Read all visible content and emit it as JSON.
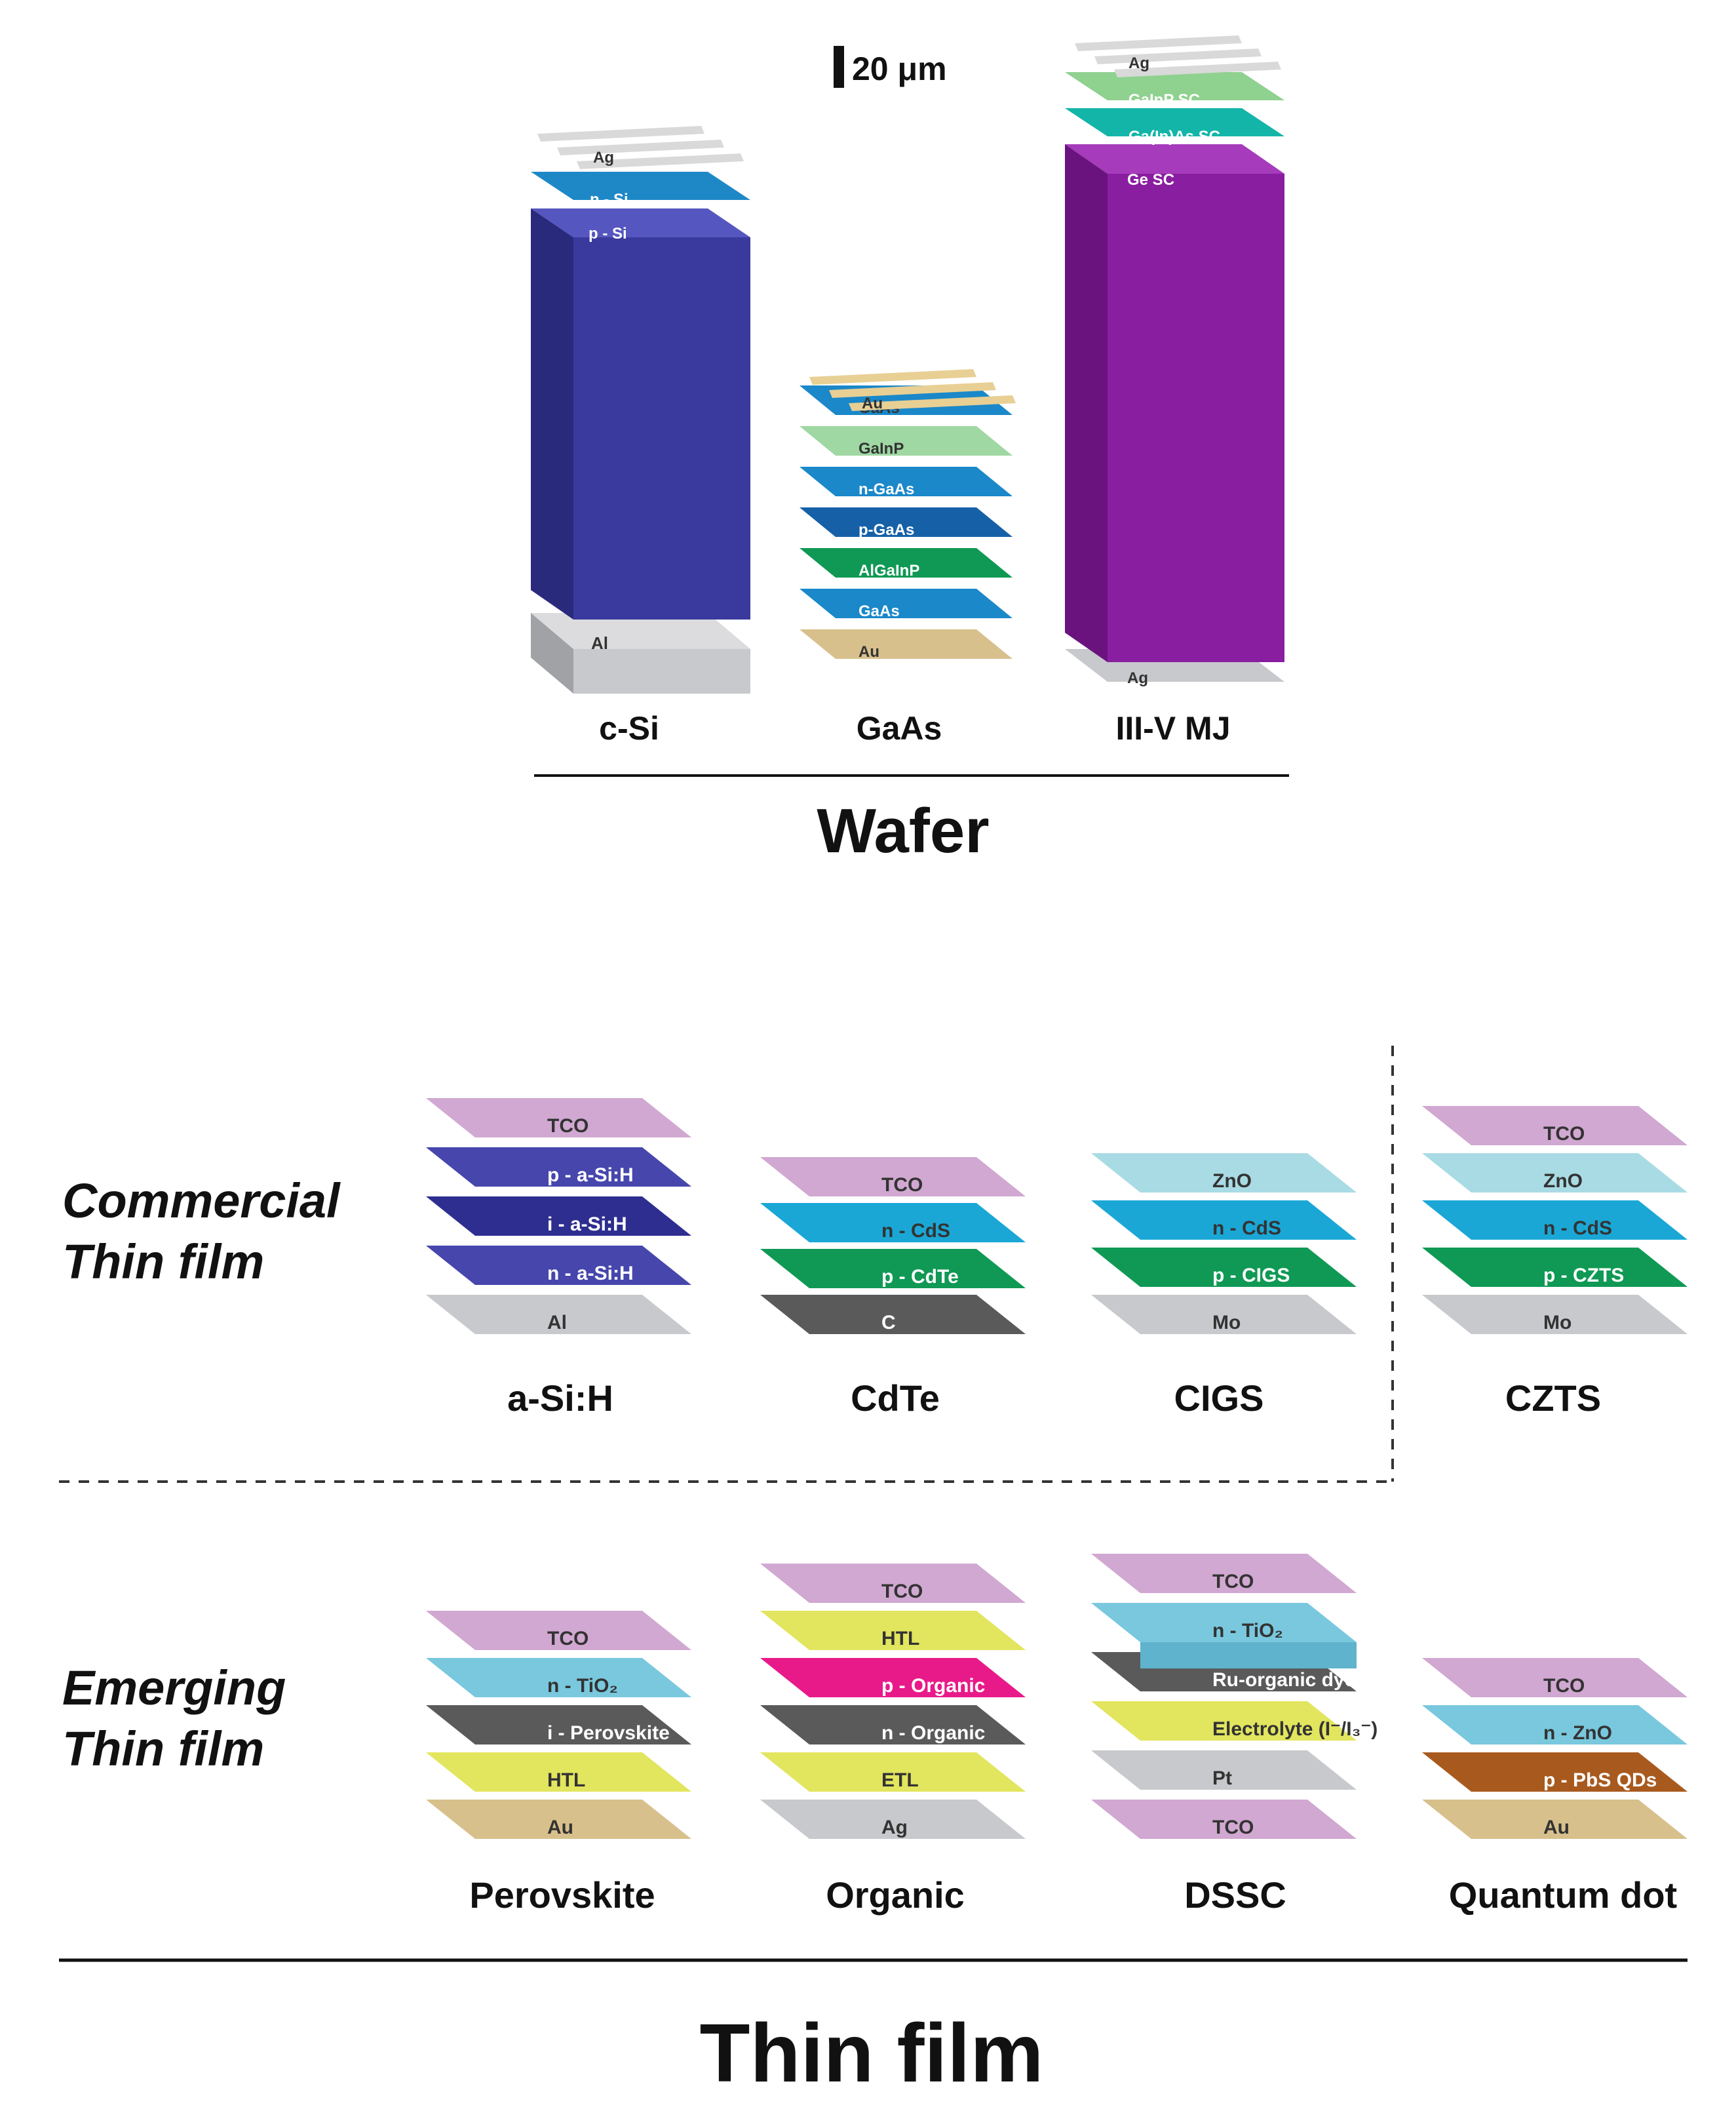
{
  "scale_bar": "20 μm",
  "wafer": {
    "title": "Wafer",
    "stacks": [
      {
        "name": "c-Si",
        "layers": [
          "Al",
          "p - Si",
          "n - Si",
          "Ag"
        ]
      },
      {
        "name": "GaAs",
        "layers": [
          "Au",
          "GaAs",
          "AlGaInP",
          "p-GaAs",
          "n-GaAs",
          "GaInP",
          "GaAs",
          "Au"
        ]
      },
      {
        "name": "III-V MJ",
        "layers": [
          "Ag",
          "Ge SC",
          "Ga(In)As SC",
          "GaInP SC",
          "Ag"
        ]
      }
    ]
  },
  "thin_film": {
    "title": "Thin film",
    "commercial": {
      "heading": [
        "Commercial",
        "Thin film"
      ],
      "stacks": [
        {
          "name": "a-Si:H",
          "layers": [
            "Al",
            "n - a-Si:H",
            "i - a-Si:H",
            "p - a-Si:H",
            "TCO"
          ]
        },
        {
          "name": "CdTe",
          "layers": [
            "C",
            "p - CdTe",
            "n - CdS",
            "TCO"
          ]
        },
        {
          "name": "CIGS",
          "layers": [
            "Mo",
            "p - CIGS",
            "n - CdS",
            "ZnO"
          ]
        },
        {
          "name": "CZTS",
          "layers": [
            "Mo",
            "p - CZTS",
            "n - CdS",
            "ZnO",
            "TCO"
          ]
        }
      ]
    },
    "emerging": {
      "heading": [
        "Emerging",
        "Thin film"
      ],
      "stacks": [
        {
          "name": "Perovskite",
          "layers": [
            "Au",
            "HTL",
            "i - Perovskite",
            "n - TiO₂",
            "TCO"
          ]
        },
        {
          "name": "Organic",
          "layers": [
            "Ag",
            "ETL",
            "n - Organic",
            "p - Organic",
            "HTL",
            "TCO"
          ]
        },
        {
          "name": "DSSC",
          "layers": [
            "TCO",
            "Pt",
            "Electrolyte (I⁻/I₃⁻)",
            "Ru-organic dye",
            "n - TiO₂",
            "TCO"
          ]
        },
        {
          "name": "Quantum dot",
          "layers": [
            "Au",
            "p - PbS QDs",
            "n - ZnO",
            "TCO"
          ]
        }
      ]
    }
  },
  "colors": {
    "tco": "#d1a8d1",
    "si_blue": "#3a3a9e",
    "cds_blue": "#1aa7d6",
    "green": "#0f9954",
    "light_green": "#9fd8a2",
    "gaas_blue": "#1a88c9",
    "teal": "#13b5a8",
    "purple": "#8a1ea0",
    "gray": "#c7c9cc",
    "dark_gray": "#5a5a5a",
    "gold": "#d8c08c",
    "zno_light": "#a9dbe4",
    "tio2": "#79c8de",
    "yellow": "#e2e55e",
    "magenta": "#e81a8a",
    "brown": "#a85a1e",
    "silver": "#dcdcdc"
  }
}
